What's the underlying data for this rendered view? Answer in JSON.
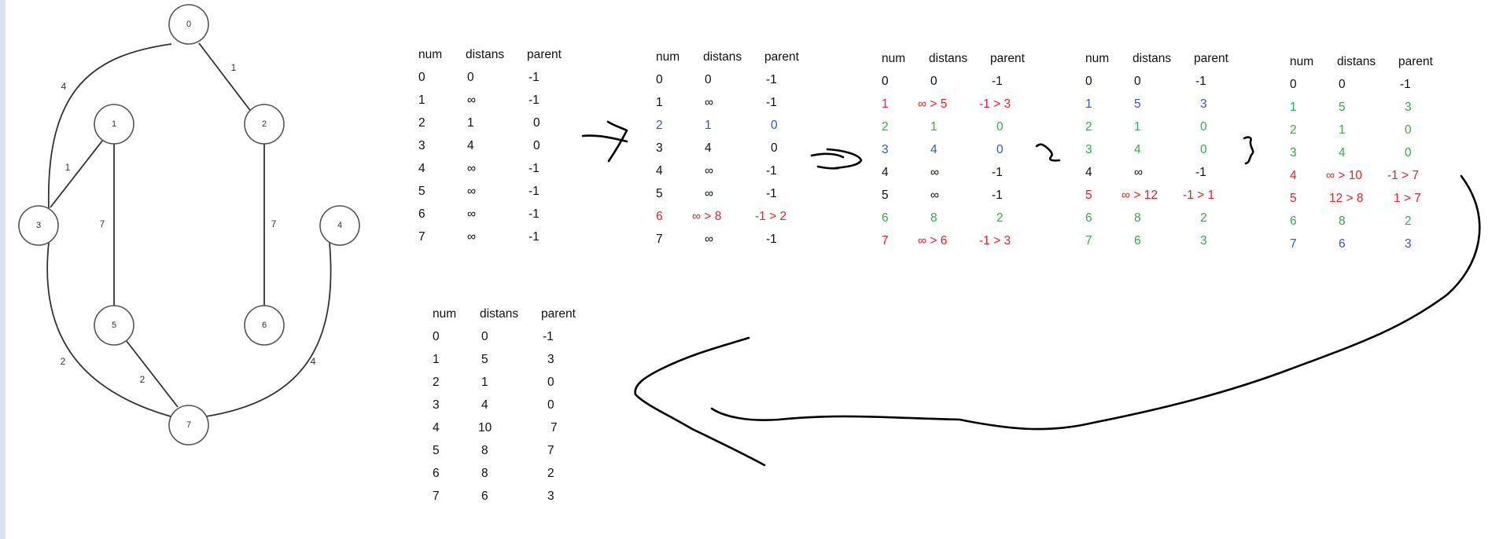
{
  "graph": {
    "nodes": [
      {
        "id": "0",
        "label": "0"
      },
      {
        "id": "1",
        "label": "1"
      },
      {
        "id": "2",
        "label": "2"
      },
      {
        "id": "3",
        "label": "3"
      },
      {
        "id": "4",
        "label": "4"
      },
      {
        "id": "5",
        "label": "5"
      },
      {
        "id": "6",
        "label": "6"
      },
      {
        "id": "7",
        "label": "7"
      }
    ],
    "edges": [
      {
        "from": "0",
        "to": "3",
        "weight": "4"
      },
      {
        "from": "0",
        "to": "2",
        "weight": "1"
      },
      {
        "from": "1",
        "to": "3",
        "weight": "1"
      },
      {
        "from": "1",
        "to": "5",
        "weight": "7"
      },
      {
        "from": "2",
        "to": "6",
        "weight": "7"
      },
      {
        "from": "3",
        "to": "7",
        "weight": "2"
      },
      {
        "from": "5",
        "to": "7",
        "weight": "2"
      },
      {
        "from": "4",
        "to": "7",
        "weight": "4"
      }
    ]
  },
  "tables": [
    {
      "headers": [
        "num",
        "distans",
        "parent"
      ],
      "rows": [
        {
          "color": "black",
          "cells": [
            "0",
            "0",
            "-1"
          ]
        },
        {
          "color": "black",
          "cells": [
            "1",
            "∞",
            "-1"
          ]
        },
        {
          "color": "black",
          "cells": [
            "2",
            "1",
            "0"
          ]
        },
        {
          "color": "black",
          "cells": [
            "3",
            "4",
            "0"
          ]
        },
        {
          "color": "black",
          "cells": [
            "4",
            "∞",
            "-1"
          ]
        },
        {
          "color": "black",
          "cells": [
            "5",
            "∞",
            "-1"
          ]
        },
        {
          "color": "black",
          "cells": [
            "6",
            "∞",
            "-1"
          ]
        },
        {
          "color": "black",
          "cells": [
            "7",
            "∞",
            "-1"
          ]
        }
      ]
    },
    {
      "headers": [
        "num",
        "distans",
        "parent"
      ],
      "rows": [
        {
          "color": "black",
          "cells": [
            "0",
            "0",
            "-1"
          ]
        },
        {
          "color": "black",
          "cells": [
            "1",
            "∞",
            "-1"
          ]
        },
        {
          "color": "blue",
          "cells": [
            "2",
            "1",
            "0"
          ]
        },
        {
          "color": "black",
          "cells": [
            "3",
            "4",
            "0"
          ]
        },
        {
          "color": "black",
          "cells": [
            "4",
            "∞",
            "-1"
          ]
        },
        {
          "color": "black",
          "cells": [
            "5",
            "∞",
            "-1"
          ]
        },
        {
          "color": "red",
          "cells": [
            "6",
            "∞ > 8",
            "-1 > 2"
          ]
        },
        {
          "color": "black",
          "cells": [
            "7",
            "∞",
            "-1"
          ]
        }
      ]
    },
    {
      "headers": [
        "num",
        "distans",
        "parent"
      ],
      "rows": [
        {
          "color": "black",
          "cells": [
            "0",
            "0",
            "-1"
          ]
        },
        {
          "color": "red",
          "cells": [
            "1",
            "∞ > 5",
            "-1 > 3"
          ]
        },
        {
          "color": "green",
          "cells": [
            "2",
            "1",
            "0"
          ]
        },
        {
          "color": "blue",
          "cells": [
            "3",
            "4",
            "0"
          ]
        },
        {
          "color": "black",
          "cells": [
            "4",
            "∞",
            "-1"
          ]
        },
        {
          "color": "black",
          "cells": [
            "5",
            "∞",
            "-1"
          ]
        },
        {
          "color": "green",
          "cells": [
            "6",
            "8",
            "2"
          ]
        },
        {
          "color": "red",
          "cells": [
            "7",
            "∞ > 6",
            "-1 > 3"
          ]
        }
      ]
    },
    {
      "headers": [
        "num",
        "distans",
        "parent"
      ],
      "rows": [
        {
          "color": "black",
          "cells": [
            "0",
            "0",
            "-1"
          ]
        },
        {
          "color": "blue",
          "cells": [
            "1",
            "5",
            "3"
          ]
        },
        {
          "color": "green",
          "cells": [
            "2",
            "1",
            "0"
          ]
        },
        {
          "color": "green",
          "cells": [
            "3",
            "4",
            "0"
          ]
        },
        {
          "color": "black",
          "cells": [
            "4",
            "∞",
            "-1"
          ]
        },
        {
          "color": "red",
          "cells": [
            "5",
            "∞ > 12",
            "-1 > 1"
          ]
        },
        {
          "color": "green",
          "cells": [
            "6",
            "8",
            "2"
          ]
        },
        {
          "color": "green",
          "cells": [
            "7",
            "6",
            "3"
          ]
        }
      ]
    },
    {
      "headers": [
        "num",
        "distans",
        "parent"
      ],
      "rows": [
        {
          "color": "black",
          "cells": [
            "0",
            "0",
            "-1"
          ]
        },
        {
          "color": "green",
          "cells": [
            "1",
            "5",
            "3"
          ]
        },
        {
          "color": "green",
          "cells": [
            "2",
            "1",
            "0"
          ]
        },
        {
          "color": "green",
          "cells": [
            "3",
            "4",
            "0"
          ]
        },
        {
          "color": "red",
          "cells": [
            "4",
            "∞ > 10",
            "-1 > 7"
          ]
        },
        {
          "color": "red",
          "cells": [
            "5",
            "12 > 8",
            "1 > 7"
          ]
        },
        {
          "color": "green",
          "cells": [
            "6",
            "8",
            "2"
          ]
        },
        {
          "color": "blue",
          "cells": [
            "7",
            "6",
            "3"
          ]
        }
      ]
    },
    {
      "headers": [
        "num",
        "distans",
        "parent"
      ],
      "rows": [
        {
          "color": "black",
          "cells": [
            "0",
            "0",
            "-1"
          ]
        },
        {
          "color": "black",
          "cells": [
            "1",
            "5",
            "3"
          ]
        },
        {
          "color": "black",
          "cells": [
            "2",
            "1",
            "0"
          ]
        },
        {
          "color": "black",
          "cells": [
            "3",
            "4",
            "0"
          ]
        },
        {
          "color": "black",
          "cells": [
            "4",
            "10",
            "7"
          ]
        },
        {
          "color": "black",
          "cells": [
            "5",
            "8",
            "7"
          ]
        },
        {
          "color": "black",
          "cells": [
            "6",
            "8",
            "2"
          ]
        },
        {
          "color": "black",
          "cells": [
            "7",
            "6",
            "3"
          ]
        }
      ]
    }
  ],
  "colors": {
    "red": "#e8202a",
    "green": "#2eae4e",
    "blue": "#3d52c8",
    "black": "#111111"
  }
}
